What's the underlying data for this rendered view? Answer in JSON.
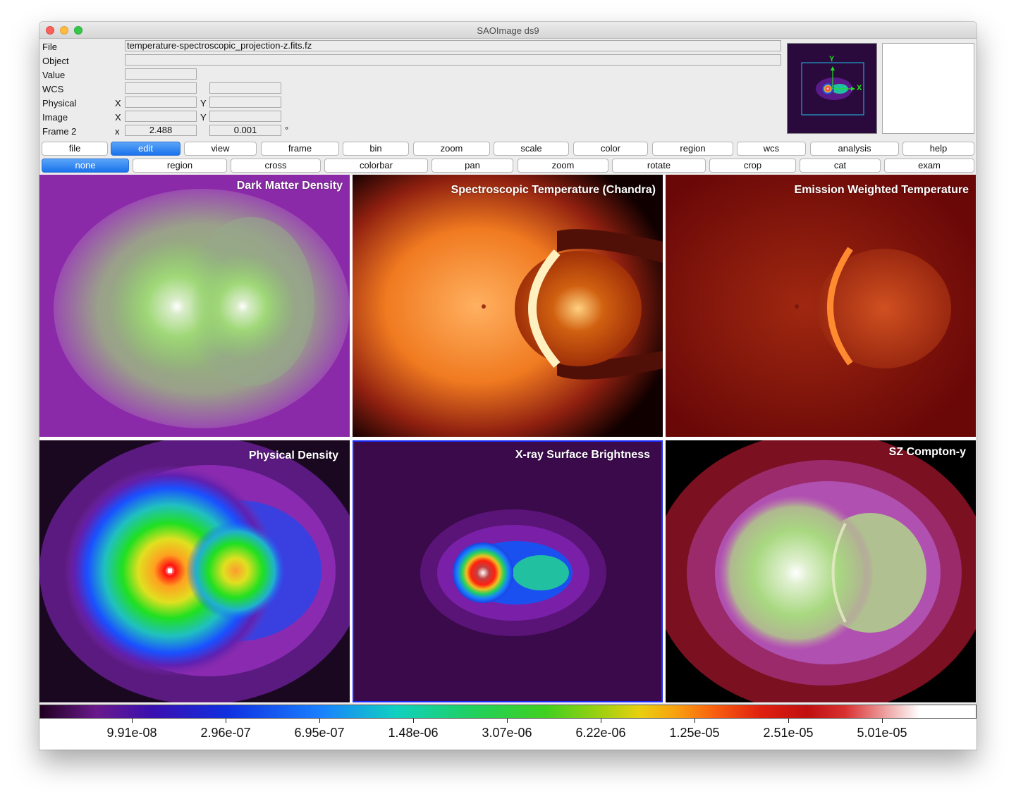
{
  "window": {
    "title": "SAOImage ds9"
  },
  "info": {
    "file_label": "File",
    "file_value": "temperature-spectroscopic_projection-z.fits.fz",
    "object_label": "Object",
    "object_value": "",
    "value_label": "Value",
    "wcs_label": "WCS",
    "physical_label": "Physical",
    "image_label": "Image",
    "frame_label": "Frame 2",
    "x_upper": "X",
    "y_upper": "Y",
    "x_lower": "x",
    "frame_x_value": "2.488",
    "frame_y_value": "0.001",
    "degree_symbol": "°"
  },
  "panner": {
    "x_axis": "X",
    "y_axis": "Y"
  },
  "menu_buttons": [
    "file",
    "edit",
    "view",
    "frame",
    "bin",
    "zoom",
    "scale",
    "color",
    "region",
    "wcs",
    "analysis",
    "help"
  ],
  "menu_active": "edit",
  "mode_buttons": [
    "none",
    "region",
    "cross",
    "colorbar",
    "pan",
    "zoom",
    "rotate",
    "crop",
    "cat",
    "exam"
  ],
  "mode_active": "none",
  "frames": [
    {
      "title": "Dark Matter Density"
    },
    {
      "title": "Spectroscopic Temperature (Chandra)"
    },
    {
      "title": "Emission Weighted Temperature"
    },
    {
      "title": "Physical Density"
    },
    {
      "title": "X-ray Surface Brightness"
    },
    {
      "title": "SZ Compton-y"
    }
  ],
  "colorbar": {
    "labels": [
      "9.91e-08",
      "2.96e-07",
      "6.95e-07",
      "1.48e-06",
      "3.07e-06",
      "6.22e-06",
      "1.25e-05",
      "2.51e-05",
      "5.01e-05"
    ]
  },
  "colors": {
    "active_button": "#1a72ec",
    "selected_frame_border": "#1a2cff"
  }
}
